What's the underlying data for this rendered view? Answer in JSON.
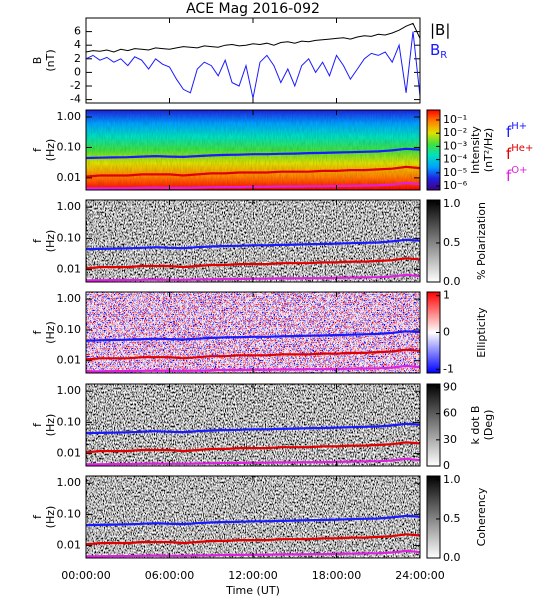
{
  "chart_data": [
    {
      "type": "line",
      "title": "ACE Mag 2016-092",
      "y_label": [
        "B",
        "(nT)"
      ],
      "ylim": [
        -4.5,
        8
      ],
      "yticks": [
        -4,
        -2,
        0,
        2,
        4,
        6
      ],
      "x": [
        0,
        0.5,
        1,
        1.5,
        2,
        2.5,
        3,
        3.5,
        4,
        4.5,
        5,
        5.5,
        6,
        6.5,
        7,
        7.5,
        8,
        8.5,
        9,
        9.5,
        10,
        10.5,
        11,
        11.5,
        12,
        12.5,
        13,
        13.5,
        14,
        14.5,
        15,
        15.5,
        16,
        16.5,
        17,
        17.5,
        18,
        18.5,
        19,
        19.5,
        20,
        20.5,
        21,
        21.5,
        22,
        22.5,
        23,
        23.5,
        24
      ],
      "series": [
        {
          "name": "|B|",
          "color": "#000000",
          "values": [
            3.0,
            3.2,
            3.1,
            3.3,
            3.0,
            3.4,
            3.2,
            3.5,
            3.4,
            3.3,
            3.6,
            3.5,
            3.4,
            3.6,
            3.8,
            3.7,
            3.6,
            3.9,
            3.8,
            3.7,
            4.0,
            4.1,
            3.9,
            4.0,
            4.2,
            4.1,
            4.3,
            4.0,
            4.4,
            4.5,
            4.3,
            4.6,
            4.5,
            4.7,
            4.8,
            4.9,
            5.0,
            5.1,
            4.9,
            5.2,
            5.4,
            5.3,
            5.6,
            5.5,
            5.8,
            6.2,
            6.8,
            7.2,
            5.0
          ]
        },
        {
          "name": "B",
          "subscript": "R",
          "color": "#1a1aff",
          "values": [
            2.0,
            2.5,
            1.8,
            2.2,
            1.5,
            2.0,
            1.0,
            2.3,
            1.8,
            0.5,
            2.0,
            1.2,
            0.8,
            -1.0,
            -2.5,
            -3.0,
            0.5,
            1.5,
            1.0,
            -0.5,
            1.8,
            -1.5,
            -2.0,
            1.0,
            -3.8,
            1.5,
            2.5,
            1.0,
            -1.5,
            0.5,
            -2.0,
            1.0,
            2.0,
            0.0,
            1.5,
            -0.5,
            2.5,
            1.0,
            -1.0,
            0.5,
            2.0,
            2.8,
            2.5,
            3.0,
            1.5,
            4.0,
            -3.0,
            6.0,
            -3.5
          ]
        }
      ]
    },
    {
      "type": "spectrogram",
      "y_label": [
        "f",
        "(Hz)"
      ],
      "ylim": [
        0.004,
        1.7
      ],
      "log_y": true,
      "yticks": [
        {
          "value": 1,
          "label": "1.00"
        },
        {
          "value": 0.1,
          "label": "0.10"
        },
        {
          "value": 0.01,
          "label": "0.01"
        }
      ],
      "colorbar_label": [
        "Intensity",
        "(nT²/Hz)"
      ],
      "clim": [
        5e-07,
        0.57
      ],
      "log_c": true,
      "cticks": [
        {
          "value": 0.1,
          "label": "10⁻¹"
        },
        {
          "value": 0.01,
          "label": "10⁻²"
        },
        {
          "value": 0.001,
          "label": "10⁻³"
        },
        {
          "value": 0.0001,
          "label": "10⁻⁴"
        },
        {
          "value": 1e-05,
          "label": "10⁻⁵"
        },
        {
          "value": 1e-06,
          "label": "10⁻⁶"
        }
      ],
      "colormap": [
        "#400080",
        "#2020e0",
        "#00a0ff",
        "#00e0c0",
        "#40e040",
        "#e0e000",
        "#ff8000",
        "#ff0000"
      ],
      "legend_symbol": "f",
      "x": [
        0,
        1,
        2,
        3,
        4,
        5,
        6,
        7,
        8,
        9,
        10,
        11,
        12,
        13,
        14,
        15,
        16,
        17,
        18,
        19,
        20,
        21,
        22,
        23,
        24
      ],
      "series": [
        {
          "name": "H+",
          "color": "#1a1aff",
          "values": [
            0.045,
            0.046,
            0.047,
            0.048,
            0.05,
            0.052,
            0.05,
            0.049,
            0.052,
            0.055,
            0.057,
            0.058,
            0.06,
            0.06,
            0.062,
            0.063,
            0.065,
            0.066,
            0.068,
            0.07,
            0.072,
            0.074,
            0.08,
            0.09,
            0.085
          ]
        },
        {
          "name": "He+",
          "color": "#e00000",
          "values": [
            0.011,
            0.012,
            0.012,
            0.012,
            0.013,
            0.013,
            0.013,
            0.012,
            0.013,
            0.014,
            0.014,
            0.015,
            0.015,
            0.015,
            0.016,
            0.016,
            0.016,
            0.017,
            0.017,
            0.018,
            0.018,
            0.019,
            0.02,
            0.023,
            0.021
          ]
        },
        {
          "name": "O+",
          "color": "#e020e0",
          "values": [
            0.0045,
            0.0045,
            0.0046,
            0.0046,
            0.0047,
            0.0048,
            0.0047,
            0.0047,
            0.0048,
            0.0049,
            0.005,
            0.005,
            0.0051,
            0.0051,
            0.0052,
            0.0052,
            0.0053,
            0.0053,
            0.0054,
            0.0055,
            0.0056,
            0.0057,
            0.006,
            0.0068,
            0.0062
          ]
        }
      ]
    },
    {
      "type": "spectrogram",
      "y_label": [
        "f",
        "(Hz)"
      ],
      "ylim": [
        0.004,
        1.7
      ],
      "log_y": true,
      "yticks": [
        {
          "value": 1,
          "label": "1.00"
        },
        {
          "value": 0.1,
          "label": "0.10"
        },
        {
          "value": 0.01,
          "label": "0.01"
        }
      ],
      "colorbar_label": [
        "% Polarization"
      ],
      "clim": [
        0,
        1.05
      ],
      "cticks": [
        {
          "value": 0,
          "label": "0.0"
        },
        {
          "value": 0.5,
          "label": "0.5"
        },
        {
          "value": 1,
          "label": "1.0"
        }
      ],
      "colormap": [
        "#ffffff",
        "#000000"
      ]
    },
    {
      "type": "spectrogram",
      "y_label": [
        "f",
        "(Hz)"
      ],
      "ylim": [
        0.004,
        1.7
      ],
      "log_y": true,
      "yticks": [
        {
          "value": 1,
          "label": "1.00"
        },
        {
          "value": 0.1,
          "label": "0.10"
        },
        {
          "value": 0.01,
          "label": "0.01"
        }
      ],
      "colorbar_label": [
        "Ellipticity"
      ],
      "clim": [
        -1.1,
        1.1
      ],
      "cticks": [
        1,
        0,
        -1
      ],
      "colormap": [
        "#0000ff",
        "#ffffff",
        "#ff0000"
      ]
    },
    {
      "type": "spectrogram",
      "y_label": [
        "f",
        "(Hz)"
      ],
      "ylim": [
        0.004,
        1.7
      ],
      "log_y": true,
      "yticks": [
        {
          "value": 1,
          "label": "1.00"
        },
        {
          "value": 0.1,
          "label": "0.10"
        },
        {
          "value": 0.01,
          "label": "0.01"
        }
      ],
      "colorbar_label": [
        "k dot B",
        "(Deg)"
      ],
      "clim": [
        0,
        94
      ],
      "cticks": [
        0,
        30,
        60,
        90
      ],
      "colormap": [
        "#ffffff",
        "#000000"
      ]
    },
    {
      "type": "spectrogram",
      "y_label": [
        "f",
        "(Hz)"
      ],
      "ylim": [
        0.004,
        1.7
      ],
      "log_y": true,
      "yticks": [
        {
          "value": 1,
          "label": "1.00"
        },
        {
          "value": 0.1,
          "label": "0.10"
        },
        {
          "value": 0.01,
          "label": "0.01"
        }
      ],
      "colorbar_label": [
        "Coherency"
      ],
      "clim": [
        0,
        1.05
      ],
      "cticks": [
        {
          "value": 0,
          "label": "0.0"
        },
        {
          "value": 0.5,
          "label": "0.5"
        },
        {
          "value": 1,
          "label": "1.0"
        }
      ],
      "colormap": [
        "#ffffff",
        "#000000"
      ],
      "xlim": [
        0,
        24
      ],
      "x_label": "Time (UT)",
      "xticks": [
        {
          "value": 0,
          "label": "00:00:00"
        },
        {
          "value": 6,
          "label": "06:00:00"
        },
        {
          "value": 12,
          "label": "12:00:00"
        },
        {
          "value": 18,
          "label": "18:00:00"
        },
        {
          "value": 24,
          "label": "24:00:00"
        }
      ]
    }
  ]
}
